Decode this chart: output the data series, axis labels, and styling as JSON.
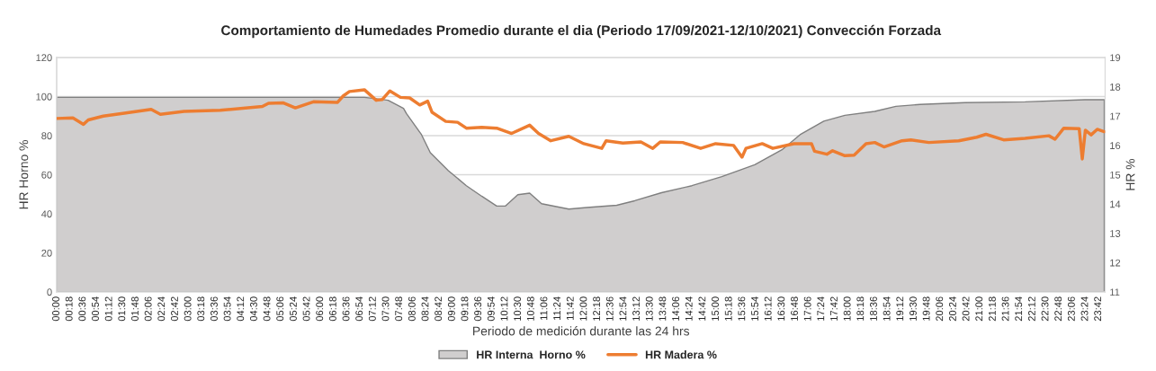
{
  "chart_data": {
    "type": "line",
    "title": "Comportamiento de Humedades Promedio durante el dia (Periodo 17/09/2021-12/10/2021) Convección Forzada",
    "xlabel": "Periodo de medición durante las 24 hrs",
    "ylabel": "HR Horno %",
    "y2label": "HR %",
    "series": [
      {
        "name": "HR Interna  Horno %",
        "type": "area",
        "color": "#d0cece",
        "x": [
          0,
          3.0,
          6.0,
          7.0,
          7.27,
          7.54,
          7.89,
          7.96,
          8.3,
          8.5,
          8.91,
          9.32,
          9.67,
          10.01,
          10.21,
          10.49,
          10.76,
          11.03,
          11.65,
          12.06,
          12.74,
          13.15,
          13.76,
          14.45,
          15.13,
          15.88,
          16.5,
          16.91,
          17.45,
          17.93,
          18.61,
          19.09,
          19.64,
          20.66,
          22.03,
          23.39,
          23.83
        ],
        "values": [
          99.6,
          99.6,
          99.6,
          99.6,
          98.9,
          98.1,
          94.0,
          91.2,
          80.5,
          71.3,
          62.1,
          54.4,
          49.0,
          44.0,
          44.0,
          49.8,
          50.6,
          45.2,
          42.4,
          43.2,
          44.4,
          46.7,
          50.8,
          54.4,
          59.0,
          65.1,
          72.8,
          80.5,
          87.4,
          90.4,
          92.4,
          95.0,
          96.0,
          96.9,
          97.3,
          98.4,
          98.4
        ]
      },
      {
        "name": "HR Madera %",
        "axis": "y2",
        "color": "#ed7d31",
        "x": [
          0,
          0.37,
          0.61,
          0.72,
          1.06,
          1.54,
          2.15,
          2.36,
          2.9,
          3.72,
          4.68,
          4.82,
          5.16,
          5.43,
          5.84,
          6.39,
          6.52,
          6.66,
          7.0,
          7.27,
          7.41,
          7.58,
          7.82,
          8.03,
          8.26,
          8.44,
          8.54,
          8.85,
          9.12,
          9.32,
          9.67,
          10.01,
          10.35,
          10.76,
          10.96,
          11.24,
          11.65,
          11.99,
          12.4,
          12.5,
          12.88,
          13.29,
          13.56,
          13.73,
          14.24,
          14.65,
          14.99,
          15.4,
          15.59,
          15.68,
          16.05,
          16.29,
          16.77,
          17.17,
          17.24,
          17.52,
          17.65,
          17.93,
          18.14,
          18.41,
          18.61,
          18.82,
          19.23,
          19.43,
          19.84,
          20.52,
          20.93,
          21.14,
          21.54,
          22.03,
          22.57,
          22.71,
          22.91,
          23.26,
          23.33,
          23.4,
          23.53,
          23.67,
          23.83
        ],
        "values": [
          16.92,
          16.94,
          16.72,
          16.87,
          17.0,
          17.1,
          17.23,
          17.06,
          17.16,
          17.2,
          17.33,
          17.44,
          17.45,
          17.28,
          17.49,
          17.47,
          17.69,
          17.84,
          17.9,
          17.54,
          17.57,
          17.86,
          17.64,
          17.62,
          17.38,
          17.51,
          17.13,
          16.82,
          16.79,
          16.59,
          16.62,
          16.59,
          16.41,
          16.69,
          16.41,
          16.16,
          16.31,
          16.06,
          15.9,
          16.16,
          16.08,
          16.12,
          15.9,
          16.12,
          16.1,
          15.9,
          16.06,
          16.0,
          15.6,
          15.9,
          16.06,
          15.9,
          16.06,
          16.06,
          15.8,
          15.7,
          15.82,
          15.65,
          15.67,
          16.06,
          16.1,
          15.95,
          16.16,
          16.19,
          16.1,
          16.16,
          16.28,
          16.38,
          16.19,
          16.24,
          16.33,
          16.21,
          16.59,
          16.57,
          15.54,
          16.52,
          16.36,
          16.55,
          16.47
        ]
      }
    ],
    "xlim": [
      0,
      23.85
    ],
    "xticks": [
      {
        "value": 0,
        "label": "00:00"
      },
      {
        "value": 0.3,
        "label": "00:18"
      },
      {
        "value": 0.6,
        "label": "00:36"
      },
      {
        "value": 0.9,
        "label": "00:54"
      },
      {
        "value": 1.2,
        "label": "01:12"
      },
      {
        "value": 1.5,
        "label": "01:30"
      },
      {
        "value": 1.8,
        "label": "01:48"
      },
      {
        "value": 2.1,
        "label": "02:06"
      },
      {
        "value": 2.4,
        "label": "02:24"
      },
      {
        "value": 2.7,
        "label": "02:42"
      },
      {
        "value": 3.0,
        "label": "03:00"
      },
      {
        "value": 3.3,
        "label": "03:18"
      },
      {
        "value": 3.6,
        "label": "03:36"
      },
      {
        "value": 3.9,
        "label": "03:54"
      },
      {
        "value": 4.2,
        "label": "04:12"
      },
      {
        "value": 4.5,
        "label": "04:30"
      },
      {
        "value": 4.8,
        "label": "04:48"
      },
      {
        "value": 5.1,
        "label": "05:06"
      },
      {
        "value": 5.4,
        "label": "05:24"
      },
      {
        "value": 5.7,
        "label": "05:42"
      },
      {
        "value": 6.0,
        "label": "06:00"
      },
      {
        "value": 6.3,
        "label": "06:18"
      },
      {
        "value": 6.6,
        "label": "06:36"
      },
      {
        "value": 6.9,
        "label": "06:54"
      },
      {
        "value": 7.2,
        "label": "07:12"
      },
      {
        "value": 7.5,
        "label": "07:30"
      },
      {
        "value": 7.8,
        "label": "07:48"
      },
      {
        "value": 8.1,
        "label": "08:06"
      },
      {
        "value": 8.4,
        "label": "08:24"
      },
      {
        "value": 8.7,
        "label": "08:42"
      },
      {
        "value": 9.0,
        "label": "09:00"
      },
      {
        "value": 9.3,
        "label": "09:18"
      },
      {
        "value": 9.6,
        "label": "09:36"
      },
      {
        "value": 9.9,
        "label": "09:54"
      },
      {
        "value": 10.2,
        "label": "10:12"
      },
      {
        "value": 10.5,
        "label": "10:30"
      },
      {
        "value": 10.8,
        "label": "10:48"
      },
      {
        "value": 11.1,
        "label": "11:06"
      },
      {
        "value": 11.4,
        "label": "11:24"
      },
      {
        "value": 11.7,
        "label": "11:42"
      },
      {
        "value": 12.0,
        "label": "12:00"
      },
      {
        "value": 12.3,
        "label": "12:18"
      },
      {
        "value": 12.6,
        "label": "12:36"
      },
      {
        "value": 12.9,
        "label": "12:54"
      },
      {
        "value": 13.2,
        "label": "13:12"
      },
      {
        "value": 13.5,
        "label": "13:30"
      },
      {
        "value": 13.8,
        "label": "13:48"
      },
      {
        "value": 14.1,
        "label": "14:06"
      },
      {
        "value": 14.4,
        "label": "14:24"
      },
      {
        "value": 14.7,
        "label": "14:42"
      },
      {
        "value": 15.0,
        "label": "15:00"
      },
      {
        "value": 15.3,
        "label": "15:18"
      },
      {
        "value": 15.6,
        "label": "15:36"
      },
      {
        "value": 15.9,
        "label": "15:54"
      },
      {
        "value": 16.2,
        "label": "16:12"
      },
      {
        "value": 16.5,
        "label": "16:30"
      },
      {
        "value": 16.8,
        "label": "16:48"
      },
      {
        "value": 17.1,
        "label": "17:06"
      },
      {
        "value": 17.4,
        "label": "17:24"
      },
      {
        "value": 17.7,
        "label": "17:42"
      },
      {
        "value": 18.0,
        "label": "18:00"
      },
      {
        "value": 18.3,
        "label": "18:18"
      },
      {
        "value": 18.6,
        "label": "18:36"
      },
      {
        "value": 18.9,
        "label": "18:54"
      },
      {
        "value": 19.2,
        "label": "19:12"
      },
      {
        "value": 19.5,
        "label": "19:30"
      },
      {
        "value": 19.8,
        "label": "19:48"
      },
      {
        "value": 20.1,
        "label": "20:06"
      },
      {
        "value": 20.4,
        "label": "20:24"
      },
      {
        "value": 20.7,
        "label": "20:42"
      },
      {
        "value": 21.0,
        "label": "21:00"
      },
      {
        "value": 21.3,
        "label": "21:18"
      },
      {
        "value": 21.6,
        "label": "21:36"
      },
      {
        "value": 21.9,
        "label": "21:54"
      },
      {
        "value": 22.2,
        "label": "22:12"
      },
      {
        "value": 22.5,
        "label": "22:30"
      },
      {
        "value": 22.8,
        "label": "22:48"
      },
      {
        "value": 23.1,
        "label": "23:06"
      },
      {
        "value": 23.4,
        "label": "23:24"
      },
      {
        "value": 23.7,
        "label": "23:42"
      }
    ],
    "ylim": [
      0,
      120
    ],
    "yticks": [
      0,
      20,
      40,
      60,
      80,
      100,
      120
    ],
    "y2lim": [
      11,
      19
    ],
    "y2ticks": [
      11,
      12,
      13,
      14,
      15,
      16,
      17,
      18,
      19
    ],
    "grid": "y",
    "legend": "bottom"
  }
}
